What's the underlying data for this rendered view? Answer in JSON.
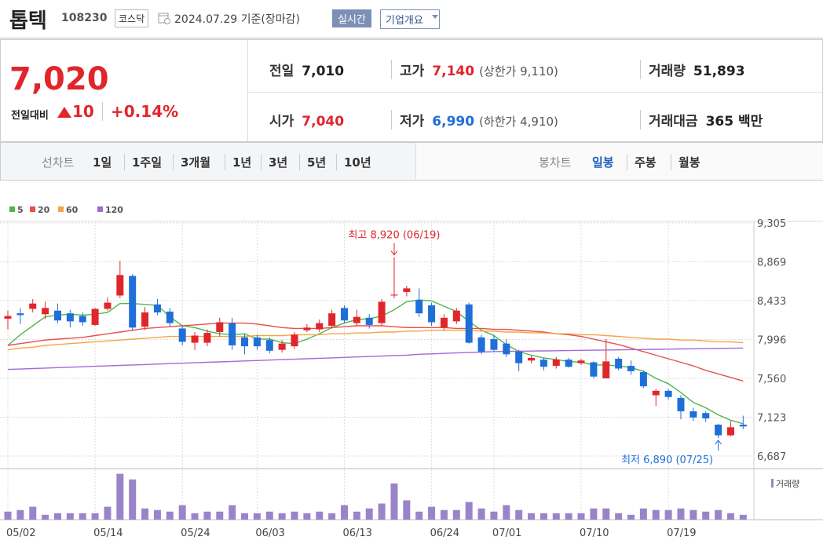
{
  "header": {
    "name": "톱텍",
    "code": "108230",
    "market": "코스닥",
    "date": "2024.07.29 기준(장마감)",
    "realtime": "실시간",
    "company": "기업개요"
  },
  "summary": {
    "price": "7,020",
    "change_label": "전일대비",
    "change": "10",
    "change_pct": "+0.14%",
    "stats": [
      {
        "label": "전일",
        "value": "7,010"
      },
      {
        "label": "고가",
        "value": "7,140",
        "note": "(상한가 9,110)"
      },
      {
        "label": "거래량",
        "value": "51,893"
      },
      {
        "label": "시가",
        "value": "7,040"
      },
      {
        "label": "저가",
        "value": "6,990",
        "note": "(하한가 4,910)"
      },
      {
        "label": "거래대금",
        "value": "365 백만"
      }
    ]
  },
  "tabs": {
    "line_label": "선차트",
    "line": [
      "1일",
      "1주일",
      "3개월",
      "1년",
      "3년",
      "5년",
      "10년"
    ],
    "candle_label": "봉차트",
    "candle": [
      "일봉",
      "주봉",
      "월봉"
    ]
  },
  "chart_data": {
    "type": "candlestick",
    "up_color": "#e0262b",
    "down_color": "#1f6fd8",
    "categories": [
      "05/02",
      null,
      null,
      null,
      null,
      null,
      null,
      "05/14",
      null,
      null,
      null,
      null,
      null,
      null,
      "05/24",
      null,
      null,
      null,
      null,
      null,
      "06/03",
      null,
      null,
      null,
      null,
      null,
      null,
      "06/13",
      null,
      null,
      null,
      null,
      null,
      null,
      "06/24",
      null,
      null,
      null,
      null,
      "07/01",
      null,
      null,
      null,
      null,
      null,
      null,
      "07/10",
      null,
      null,
      null,
      null,
      null,
      null,
      "07/19",
      null,
      null,
      null,
      null,
      null,
      null
    ],
    "open": [
      8230,
      8290,
      8340,
      8280,
      8320,
      8290,
      8260,
      8160,
      8340,
      8490,
      8710,
      8140,
      8390,
      8310,
      8120,
      7960,
      7960,
      8080,
      8180,
      8020,
      8020,
      7990,
      7880,
      7920,
      8100,
      8110,
      8150,
      8350,
      8180,
      8240,
      8180,
      8490,
      8530,
      8440,
      8380,
      8130,
      8200,
      8390,
      8020,
      8000,
      7950,
      7860,
      7760,
      7770,
      7700,
      7770,
      7730,
      7740,
      7560,
      7780,
      7700,
      7630,
      7370,
      7420,
      7340,
      7190,
      7170,
      7040,
      6920,
      7040
    ],
    "high": [
      8320,
      8350,
      8450,
      8420,
      8400,
      8330,
      8300,
      8350,
      8470,
      8880,
      8730,
      8360,
      8450,
      8350,
      8150,
      8080,
      8110,
      8240,
      8240,
      8060,
      8050,
      8020,
      7990,
      8080,
      8170,
      8220,
      8330,
      8380,
      8330,
      8280,
      8450,
      8920,
      8600,
      8570,
      8410,
      8280,
      8350,
      8410,
      8050,
      8050,
      8000,
      7880,
      7820,
      7790,
      7800,
      7790,
      7780,
      7750,
      8000,
      7800,
      7760,
      7650,
      7440,
      7440,
      7370,
      7230,
      7190,
      7050,
      7080,
      7140
    ],
    "low": [
      8110,
      8170,
      8300,
      8230,
      8180,
      8130,
      8150,
      8150,
      8320,
      8460,
      8090,
      8100,
      8270,
      8140,
      7930,
      7880,
      7920,
      8030,
      7880,
      7830,
      7880,
      7840,
      7850,
      7890,
      8080,
      8080,
      8120,
      8180,
      8150,
      8120,
      8150,
      8460,
      8480,
      8250,
      8150,
      8100,
      8170,
      7950,
      7830,
      7860,
      7800,
      7640,
      7730,
      7650,
      7670,
      7680,
      7710,
      7560,
      7560,
      7650,
      7600,
      7450,
      7250,
      7320,
      7100,
      7080,
      7070,
      6890,
      6910,
      6990
    ],
    "close": [
      8260,
      8270,
      8400,
      8350,
      8210,
      8200,
      8190,
      8340,
      8410,
      8720,
      8130,
      8300,
      8300,
      8180,
      7970,
      8040,
      8070,
      8190,
      7930,
      7920,
      7920,
      7870,
      7950,
      8050,
      8130,
      8180,
      8290,
      8210,
      8250,
      8160,
      8420,
      8500,
      8570,
      8290,
      8190,
      8240,
      8320,
      7960,
      7860,
      7880,
      7830,
      7730,
      7790,
      7690,
      7770,
      7690,
      7760,
      7580,
      7750,
      7670,
      7640,
      7470,
      7420,
      7350,
      7190,
      7120,
      7110,
      6920,
      7010,
      7020
    ],
    "lines": [
      {
        "name": "5",
        "color": "#4cb84a",
        "values": [
          7930,
          8050,
          8150,
          8250,
          8270,
          8280,
          8270,
          8280,
          8300,
          8400,
          8400,
          8390,
          8380,
          8250,
          8150,
          8130,
          8090,
          8060,
          8050,
          8060,
          8000,
          8000,
          7960,
          7950,
          8000,
          8060,
          8130,
          8180,
          8220,
          8230,
          8260,
          8330,
          8420,
          8440,
          8430,
          8370,
          8310,
          8200,
          8100,
          8040,
          7940,
          7860,
          7820,
          7790,
          7770,
          7750,
          7740,
          7710,
          7710,
          7700,
          7680,
          7640,
          7560,
          7500,
          7400,
          7290,
          7230,
          7150,
          7090,
          7050
        ]
      },
      {
        "name": "20",
        "color": "#e8504a",
        "values": [
          7930,
          7950,
          7970,
          7990,
          8000,
          8010,
          8020,
          8040,
          8060,
          8080,
          8100,
          8120,
          8130,
          8140,
          8150,
          8160,
          8170,
          8180,
          8180,
          8180,
          8170,
          8150,
          8130,
          8120,
          8120,
          8120,
          8130,
          8140,
          8150,
          8150,
          8150,
          8140,
          8130,
          8130,
          8130,
          8130,
          8120,
          8120,
          8120,
          8110,
          8110,
          8100,
          8090,
          8080,
          8060,
          8050,
          8030,
          8000,
          7970,
          7940,
          7900,
          7860,
          7820,
          7780,
          7740,
          7700,
          7650,
          7610,
          7570,
          7530
        ]
      },
      {
        "name": "60",
        "color": "#f5a445",
        "values": [
          7880,
          7900,
          7910,
          7930,
          7940,
          7950,
          7960,
          7970,
          7980,
          7990,
          8000,
          8010,
          8020,
          8030,
          8030,
          8030,
          8030,
          8030,
          8030,
          8030,
          8040,
          8040,
          8040,
          8050,
          8050,
          8050,
          8060,
          8060,
          8070,
          8070,
          8080,
          8080,
          8090,
          8090,
          8100,
          8100,
          8100,
          8100,
          8090,
          8090,
          8080,
          8080,
          8070,
          8070,
          8060,
          8060,
          8050,
          8050,
          8040,
          8030,
          8020,
          8010,
          8000,
          8000,
          7990,
          7990,
          7980,
          7970,
          7970,
          7960
        ]
      },
      {
        "name": "120",
        "color": "#a46ad6",
        "values": [
          7660,
          7665,
          7670,
          7675,
          7680,
          7685,
          7690,
          7695,
          7700,
          7705,
          7710,
          7715,
          7720,
          7725,
          7730,
          7735,
          7740,
          7745,
          7750,
          7755,
          7760,
          7765,
          7770,
          7775,
          7780,
          7785,
          7790,
          7795,
          7800,
          7805,
          7810,
          7815,
          7820,
          7830,
          7835,
          7840,
          7845,
          7850,
          7855,
          7860,
          7862,
          7864,
          7866,
          7868,
          7870,
          7872,
          7874,
          7876,
          7878,
          7880,
          7882,
          7884,
          7886,
          7888,
          7890,
          7892,
          7894,
          7896,
          7898,
          7900
        ]
      }
    ],
    "ylim": [
      6687,
      9305
    ],
    "yticks": [
      {
        "value": 9305,
        "label": "9,305"
      },
      {
        "value": 8869,
        "label": "8,869"
      },
      {
        "value": 8433,
        "label": "8,433"
      },
      {
        "value": 7996,
        "label": "7,996"
      },
      {
        "value": 7560,
        "label": "7,560"
      },
      {
        "value": 7123,
        "label": "7,123"
      },
      {
        "value": 6687,
        "label": "6,687"
      }
    ],
    "grid": true,
    "annotations": {
      "high": "최고 8,920 (06/19)",
      "low": "최저 6,890 (07/25)"
    },
    "volume": {
      "name": "거래량",
      "color": "#9a84c9",
      "ylim": [
        0,
        520000
      ],
      "values": [
        86000,
        103000,
        138000,
        52000,
        69000,
        69000,
        69000,
        69000,
        138000,
        490000,
        430000,
        120000,
        103000,
        86000,
        155000,
        69000,
        86000,
        86000,
        155000,
        69000,
        69000,
        86000,
        69000,
        86000,
        69000,
        86000,
        69000,
        155000,
        86000,
        120000,
        172000,
        387000,
        206000,
        86000,
        138000,
        103000,
        103000,
        189000,
        120000,
        86000,
        155000,
        103000,
        69000,
        69000,
        69000,
        69000,
        69000,
        120000,
        120000,
        69000,
        52000,
        120000,
        103000,
        103000,
        120000,
        103000,
        86000,
        103000,
        69000,
        51893
      ]
    }
  }
}
